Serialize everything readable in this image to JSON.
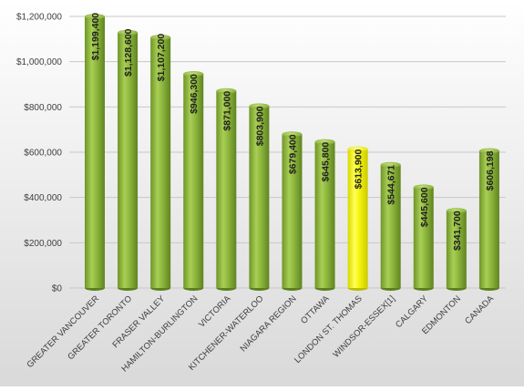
{
  "chart_data": {
    "type": "bar",
    "title": "",
    "xlabel": "",
    "ylabel": "",
    "ylim": [
      0,
      1200000
    ],
    "yticks": [
      0,
      200000,
      400000,
      600000,
      800000,
      1000000,
      1200000
    ],
    "ytick_labels": [
      "$0",
      "$200,000",
      "$400,000",
      "$600,000",
      "$800,000",
      "$1,000,000",
      "$1,200,000"
    ],
    "grid": true,
    "legend": "none",
    "categories": [
      "GREATER VANCOUVER",
      "GREATER TORONTO",
      "FRASER VALLEY",
      "HAMILTON-BURLINGTON",
      "VICTORIA",
      "KITCHENER-WATERLOO",
      "NIAGARA REGION",
      "OTTAWA",
      "LONDON ST. THOMAS",
      "WINDSOR-ESSEX[1]",
      "CALGARY",
      "EDMONTON",
      "CANADA"
    ],
    "values": [
      1199400,
      1128600,
      1107200,
      946300,
      871000,
      803900,
      679400,
      645800,
      613900,
      544671,
      445600,
      341700,
      606198
    ],
    "data_labels": [
      "$1,199,400",
      "$1,128,600",
      "$1,107,200",
      "$946,300",
      "$871,000",
      "$803,900",
      "$679,400",
      "$645,800",
      "$613,900",
      "$544,671",
      "$445,600",
      "$341,700",
      "$606,198"
    ],
    "colors": {
      "bar_default": "#8db63c",
      "bar_highlight": "#f2f20a",
      "background_top": "#ffffff",
      "background_bottom": "#d9d9d9",
      "grid": "#c8c8c8"
    },
    "highlight_category": "LONDON ST. THOMAS"
  }
}
